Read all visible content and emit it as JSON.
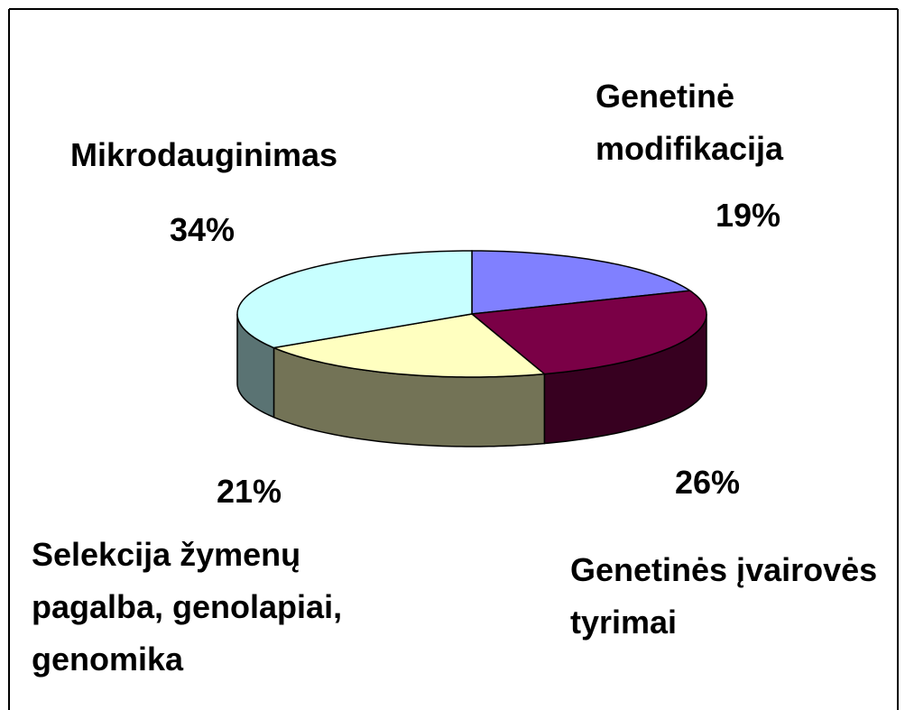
{
  "chart_data": {
    "type": "pie3d",
    "categories": [
      "Genetinė modifikacija",
      "Genetinės įvairovės tyrimai",
      "Selekcija žymenų pagalba, genolapiai, genomika",
      "Mikrodauginimas"
    ],
    "values": [
      19,
      26,
      21,
      34
    ],
    "value_labels": [
      "19%",
      "26%",
      "21%",
      "34%"
    ],
    "colors": [
      "#8080ff",
      "#7a0046",
      "#ffffc0",
      "#c8ffff"
    ]
  }
}
